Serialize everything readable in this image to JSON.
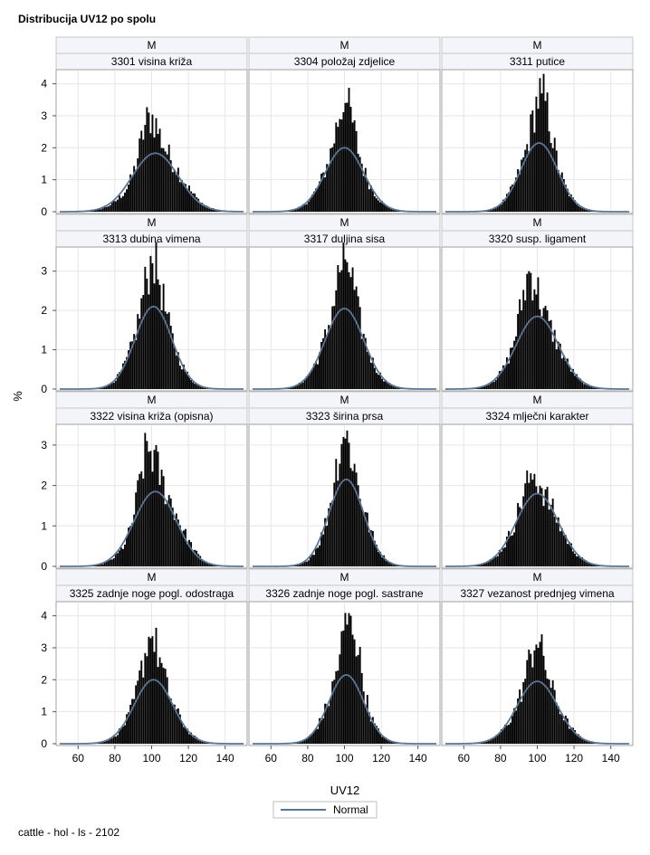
{
  "title": "Distribucija UV12 po spolu",
  "footnote": "cattle - hol - ls - 2102",
  "chart_data": {
    "type": "histogram-panel",
    "xlabel": "UV12",
    "ylabel": "%",
    "legend": {
      "label": "Normal",
      "color": "#5b7594",
      "position": "bottom-center"
    },
    "x_ticks": [
      60,
      80,
      100,
      120,
      140
    ],
    "xlim": [
      50,
      150
    ],
    "row_ylims": [
      [
        0,
        4.3
      ],
      [
        0,
        3.5
      ],
      [
        0,
        3.4
      ],
      [
        0,
        4.3
      ]
    ],
    "row_yticks": [
      [
        0,
        1,
        2,
        3,
        4
      ],
      [
        0,
        1,
        2,
        3
      ],
      [
        0,
        1,
        2,
        3
      ],
      [
        0,
        1,
        2,
        3,
        4
      ]
    ],
    "bar_color": "#000000",
    "grid": true,
    "panels": [
      {
        "group": "M",
        "trait": "3301 visina križa",
        "mean": 102,
        "sd": 12.5,
        "peak_x": 98,
        "peak_pct": 3.1,
        "normal_peak_pct": 1.83,
        "skew": 0.4
      },
      {
        "group": "M",
        "trait": "3304 položaj zdjelice",
        "mean": 100,
        "sd": 10.5,
        "peak_x": 100,
        "peak_pct": 3.4,
        "normal_peak_pct": 2.0,
        "skew": 0.0
      },
      {
        "group": "M",
        "trait": "3311 putice",
        "mean": 101,
        "sd": 10.0,
        "peak_x": 102,
        "peak_pct": 3.7,
        "normal_peak_pct": 2.15,
        "skew": 0.0
      },
      {
        "group": "M",
        "trait": "3313 dubina vimena",
        "mean": 101,
        "sd": 10.0,
        "peak_x": 100,
        "peak_pct": 3.2,
        "normal_peak_pct": 2.1,
        "skew": 0.0
      },
      {
        "group": "M",
        "trait": "3317 duljina sisa",
        "mean": 100,
        "sd": 10.5,
        "peak_x": 100,
        "peak_pct": 3.3,
        "normal_peak_pct": 2.05,
        "skew": 0.0
      },
      {
        "group": "M",
        "trait": "3320 susp. ligament",
        "mean": 100,
        "sd": 11.5,
        "peak_x": 95,
        "peak_pct": 3.0,
        "normal_peak_pct": 1.85,
        "skew": 0.0
      },
      {
        "group": "M",
        "trait": "3322 visina križa (opisna)",
        "mean": 102,
        "sd": 11.5,
        "peak_x": 97,
        "peak_pct": 3.1,
        "normal_peak_pct": 1.85,
        "skew": 0.4
      },
      {
        "group": "M",
        "trait": "3323 širina prsa",
        "mean": 101,
        "sd": 9.5,
        "peak_x": 99,
        "peak_pct": 3.2,
        "normal_peak_pct": 2.15,
        "skew": 0.2
      },
      {
        "group": "M",
        "trait": "3324 mlječni karakter",
        "mean": 100,
        "sd": 11.5,
        "peak_x": 96,
        "peak_pct": 2.3,
        "normal_peak_pct": 1.8,
        "skew": 0.0
      },
      {
        "group": "M",
        "trait": "3325 zadnje noge pogl. odostraga",
        "mean": 101,
        "sd": 10.5,
        "peak_x": 99,
        "peak_pct": 3.3,
        "normal_peak_pct": 2.0,
        "skew": 0.1
      },
      {
        "group": "M",
        "trait": "3326 zadnje noge pogl. sastrane",
        "mean": 101,
        "sd": 9.5,
        "peak_x": 103,
        "peak_pct": 4.0,
        "normal_peak_pct": 2.15,
        "skew": 0.0
      },
      {
        "group": "M",
        "trait": "3327 vezanost prednjeg vimena",
        "mean": 100,
        "sd": 11.0,
        "peak_x": 99,
        "peak_pct": 3.1,
        "normal_peak_pct": 1.95,
        "skew": 0.1
      }
    ]
  }
}
